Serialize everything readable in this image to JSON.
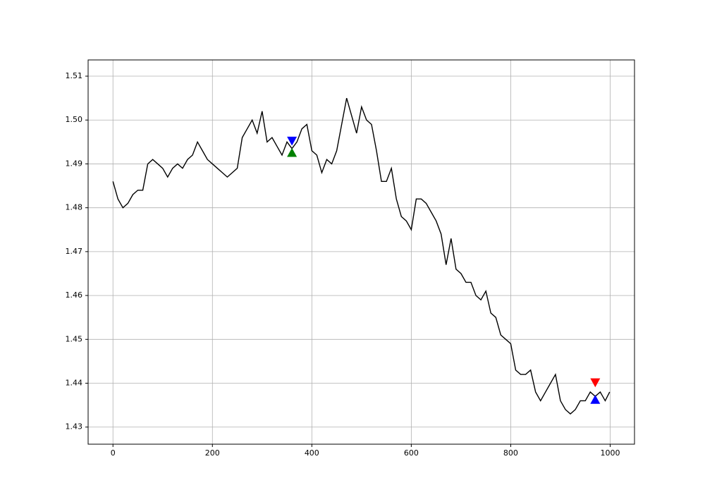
{
  "chart_data": {
    "type": "line",
    "series": [
      {
        "color": "#000000",
        "x": [
          0,
          10,
          20,
          30,
          40,
          50,
          60,
          70,
          80,
          90,
          100,
          110,
          120,
          130,
          140,
          150,
          160,
          170,
          180,
          190,
          200,
          210,
          220,
          230,
          240,
          250,
          260,
          270,
          280,
          290,
          300,
          310,
          320,
          330,
          340,
          350,
          360,
          370,
          380,
          390,
          400,
          410,
          420,
          430,
          440,
          450,
          460,
          470,
          480,
          490,
          500,
          510,
          520,
          530,
          540,
          550,
          560,
          570,
          580,
          590,
          600,
          610,
          620,
          630,
          640,
          650,
          660,
          670,
          680,
          690,
          700,
          710,
          720,
          730,
          740,
          750,
          760,
          770,
          780,
          790,
          800,
          810,
          820,
          830,
          840,
          850,
          860,
          870,
          880,
          890,
          900,
          910,
          920,
          930,
          940,
          950,
          960,
          970,
          980,
          990,
          999
        ],
        "values": [
          1.486,
          1.482,
          1.48,
          1.481,
          1.483,
          1.484,
          1.484,
          1.49,
          1.491,
          1.49,
          1.489,
          1.487,
          1.489,
          1.49,
          1.489,
          1.491,
          1.492,
          1.495,
          1.493,
          1.491,
          1.49,
          1.489,
          1.488,
          1.487,
          1.488,
          1.489,
          1.496,
          1.498,
          1.5,
          1.497,
          1.502,
          1.495,
          1.496,
          1.494,
          1.492,
          1.495,
          1.4935,
          1.495,
          1.498,
          1.499,
          1.493,
          1.492,
          1.488,
          1.491,
          1.49,
          1.493,
          1.499,
          1.505,
          1.501,
          1.497,
          1.503,
          1.5,
          1.499,
          1.493,
          1.486,
          1.486,
          1.489,
          1.482,
          1.478,
          1.477,
          1.475,
          1.482,
          1.482,
          1.481,
          1.479,
          1.477,
          1.474,
          1.467,
          1.473,
          1.466,
          1.465,
          1.463,
          1.463,
          1.46,
          1.459,
          1.461,
          1.456,
          1.455,
          1.451,
          1.45,
          1.449,
          1.443,
          1.442,
          1.442,
          1.443,
          1.438,
          1.436,
          1.438,
          1.44,
          1.442,
          1.436,
          1.434,
          1.433,
          1.434,
          1.436,
          1.436,
          1.438,
          1.437,
          1.438,
          1.436,
          1.438
        ]
      }
    ],
    "markers": [
      {
        "x": 360,
        "y": 1.4925,
        "color": "#008000",
        "marker": "^"
      },
      {
        "x": 360,
        "y": 1.4953,
        "color": "#0000ff",
        "marker": "v"
      },
      {
        "x": 970,
        "y": 1.4402,
        "color": "#ff0000",
        "marker": "v"
      },
      {
        "x": 970,
        "y": 1.4362,
        "color": "#0000ff",
        "marker": "^"
      }
    ],
    "xlim": [
      -49.95,
      1048.95
    ],
    "xticks": [
      0,
      200,
      400,
      600,
      800,
      1000
    ],
    "ylim": [
      1.4261,
      1.5137
    ],
    "yticks": [
      1.43,
      1.44,
      1.45,
      1.46,
      1.47,
      1.48,
      1.49,
      {
        "value": 1.5,
        "label": "1.50"
      },
      1.51
    ],
    "grid": true
  }
}
